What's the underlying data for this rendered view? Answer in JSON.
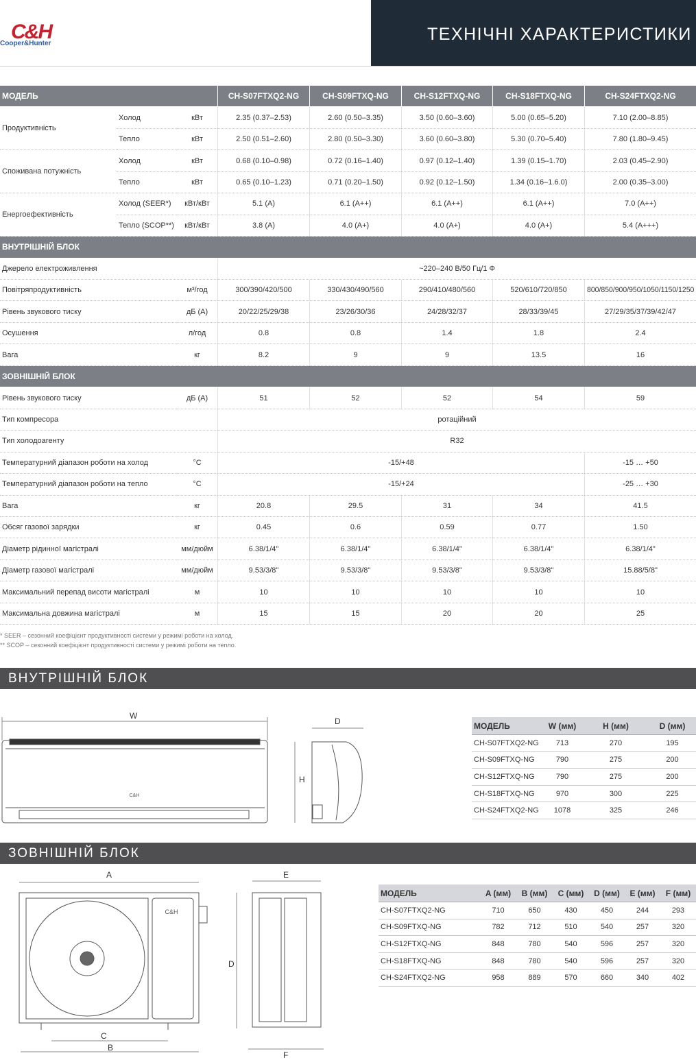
{
  "header": {
    "logo_mark": "C&H",
    "logo_brand": "Cooper&Hunter",
    "title": "ТЕХНІЧНІ ХАРАКТЕРИСТИКИ"
  },
  "spec_table": {
    "header_label": "МОДЕЛЬ",
    "models": [
      "CH-S07FTXQ2-NG",
      "CH-S09FTXQ-NG",
      "CH-S12FTXQ-NG",
      "CH-S18FTXQ-NG",
      "CH-S24FTXQ2-NG"
    ],
    "blocks": [
      {
        "rows": [
          {
            "label": "Продуктивність",
            "rows": [
              {
                "sub": "Холод",
                "unit": "кВт",
                "values": [
                  "2.35 (0.37–2.53)",
                  "2.60 (0.50–3.35)",
                  "3.50 (0.60–3.60)",
                  "5.00 (0.65–5.20)",
                  "7.10 (2.00–8.85)"
                ]
              },
              {
                "sub": "Тепло",
                "unit": "кВт",
                "values": [
                  "2.50 (0.51–2.60)",
                  "2.80 (0.50–3.30)",
                  "3.60 (0.60–3.80)",
                  "5.30 (0.70–5.40)",
                  "7.80 (1.80–9.45)"
                ]
              }
            ]
          },
          {
            "label": "Споживана потужність",
            "rows": [
              {
                "sub": "Холод",
                "unit": "кВт",
                "values": [
                  "0.68 (0.10–0.98)",
                  "0.72 (0.16–1.40)",
                  "0.97 (0.12–1.40)",
                  "1.39 (0.15–1.70)",
                  "2.03 (0.45–2.90)"
                ]
              },
              {
                "sub": "Тепло",
                "unit": "кВт",
                "values": [
                  "0.65 (0.10–1.23)",
                  "0.71 (0.20–1.50)",
                  "0.92 (0.12–1.50)",
                  "1.34 (0.16–1.6.0)",
                  "2.00 (0.35–3.00)"
                ]
              }
            ]
          },
          {
            "label": "Енергоефективність",
            "rows": [
              {
                "sub": "Холод (SEER*)",
                "unit": "кВт/кВт",
                "values": [
                  "5.1 (A)",
                  "6.1 (A++)",
                  "6.1 (A++)",
                  "6.1 (A++)",
                  "7.0 (A++)"
                ]
              },
              {
                "sub": "Тепло (SCOP**)",
                "unit": "кВт/кВт",
                "values": [
                  "3.8 (A)",
                  "4.0 (A+)",
                  "4.0 (A+)",
                  "4.0 (A+)",
                  "5.4 (A+++)"
                ]
              }
            ]
          }
        ]
      },
      {
        "title": "ВНУТРІШНІЙ БЛОК",
        "rows": [
          {
            "label": "Джерело електроживлення",
            "values": [
              "~220–240 В/50 Гц/1 Ф"
            ]
          },
          {
            "label": "Повітряпродуктивність",
            "unit": "м³/год",
            "values": [
              "300/390/420/500",
              "330/430/490/560",
              "290/410/480/560",
              "520/610/720/850",
              "800/850/900/950/1050/1150/1250"
            ]
          },
          {
            "label": "Рівень звукового тиску",
            "unit": "дБ (А)",
            "values": [
              "20/22/25/29/38",
              "23/26/30/36",
              "24/28/32/37",
              "28/33/39/45",
              "27/29/35/37/39/42/47"
            ]
          },
          {
            "label": "Осушення",
            "unit": "л/год",
            "values": [
              "0.8",
              "0.8",
              "1.4",
              "1.8",
              "2.4"
            ]
          },
          {
            "label": "Вага",
            "unit": "кг",
            "values": [
              "8.2",
              "9",
              "9",
              "13.5",
              "16"
            ]
          }
        ]
      },
      {
        "title": "ЗОВНІШНІЙ БЛОК",
        "rows": [
          {
            "label": "Рівень звукового тиску",
            "unit": "дБ (А)",
            "values": [
              "51",
              "52",
              "52",
              "54",
              "59"
            ]
          },
          {
            "label": "Тип компресора",
            "values": [
              "ротаційний"
            ]
          },
          {
            "label": "Тип холодоагенту",
            "values": [
              "R32"
            ]
          },
          {
            "label": "Температурний діапазон роботи на холод",
            "unit": "°С",
            "values": [
              "-15/+48",
              "-15 … +50"
            ]
          },
          {
            "label": "Температурний діапазон роботи на тепло",
            "unit": "°С",
            "values": [
              "-15/+24",
              "-25 … +30"
            ]
          },
          {
            "label": "Вага",
            "unit": "кг",
            "values": [
              "20.8",
              "29.5",
              "31",
              "34",
              "41.5"
            ]
          },
          {
            "label": "Обсяг газової зарядки",
            "unit": "кг",
            "values": [
              "0.45",
              "0.6",
              "0.59",
              "0.77",
              "1.50"
            ]
          },
          {
            "label": "Діаметр рідинної магістралі",
            "unit": "мм/дюйм",
            "values": [
              "6.38/1/4\"",
              "6.38/1/4\"",
              "6.38/1/4\"",
              "6.38/1/4\"",
              "6.38/1/4\""
            ]
          },
          {
            "label": "Діаметр газової магістралі",
            "unit": "мм/дюйм",
            "values": [
              "9.53/3/8\"",
              "9.53/3/8\"",
              "9.53/3/8\"",
              "9.53/3/8\"",
              "15.88/5/8\""
            ]
          },
          {
            "label": "Максимальний перепад висоти магістралі",
            "unit": "м",
            "values": [
              "10",
              "10",
              "10",
              "10",
              "10"
            ]
          },
          {
            "label": "Максимальна довжина магістралі",
            "unit": "м",
            "values": [
              "15",
              "15",
              "20",
              "20",
              "25"
            ]
          }
        ]
      }
    ]
  },
  "footnotes": [
    "* SEER – сезонний коефіцієнт продуктивності системи у режимі роботи на холод.",
    "** SCOP – сезонний коефіцієнт продуктивності системи у режимі роботи на тепло."
  ],
  "indoor": {
    "title": "ВНУТРІШНІЙ БЛОК",
    "dim_labels": {
      "w": "W",
      "d": "D",
      "h": "H"
    },
    "table": {
      "header": [
        "МОДЕЛЬ",
        "W (мм)",
        "H (мм)",
        "D (мм)"
      ],
      "rows": [
        [
          "CH-S07FTXQ2-NG",
          "713",
          "270",
          "195"
        ],
        [
          "CH-S09FTXQ-NG",
          "790",
          "275",
          "200"
        ],
        [
          "CH-S12FTXQ-NG",
          "790",
          "275",
          "200"
        ],
        [
          "CH-S18FTXQ-NG",
          "970",
          "300",
          "225"
        ],
        [
          "CH-S24FTXQ2-NG",
          "1078",
          "325",
          "246"
        ]
      ]
    }
  },
  "outdoor": {
    "title": "ЗОВНІШНІЙ БЛОК",
    "dim_labels": {
      "a": "A",
      "e": "E",
      "d": "D",
      "c": "C",
      "b": "B",
      "f": "F"
    },
    "table": {
      "header": [
        "МОДЕЛЬ",
        "A (мм)",
        "B (мм)",
        "C (мм)",
        "D (мм)",
        "E (мм)",
        "F (мм)"
      ],
      "rows": [
        [
          "CH-S07FTXQ2-NG",
          "710",
          "650",
          "430",
          "450",
          "244",
          "293"
        ],
        [
          "CH-S09FTXQ-NG",
          "782",
          "712",
          "510",
          "540",
          "257",
          "320"
        ],
        [
          "CH-S12FTXQ-NG",
          "848",
          "780",
          "540",
          "596",
          "257",
          "320"
        ],
        [
          "CH-S18FTXQ-NG",
          "848",
          "780",
          "540",
          "596",
          "257",
          "320"
        ],
        [
          "CH-S24FTXQ2-NG",
          "958",
          "889",
          "570",
          "660",
          "340",
          "402"
        ]
      ]
    }
  }
}
